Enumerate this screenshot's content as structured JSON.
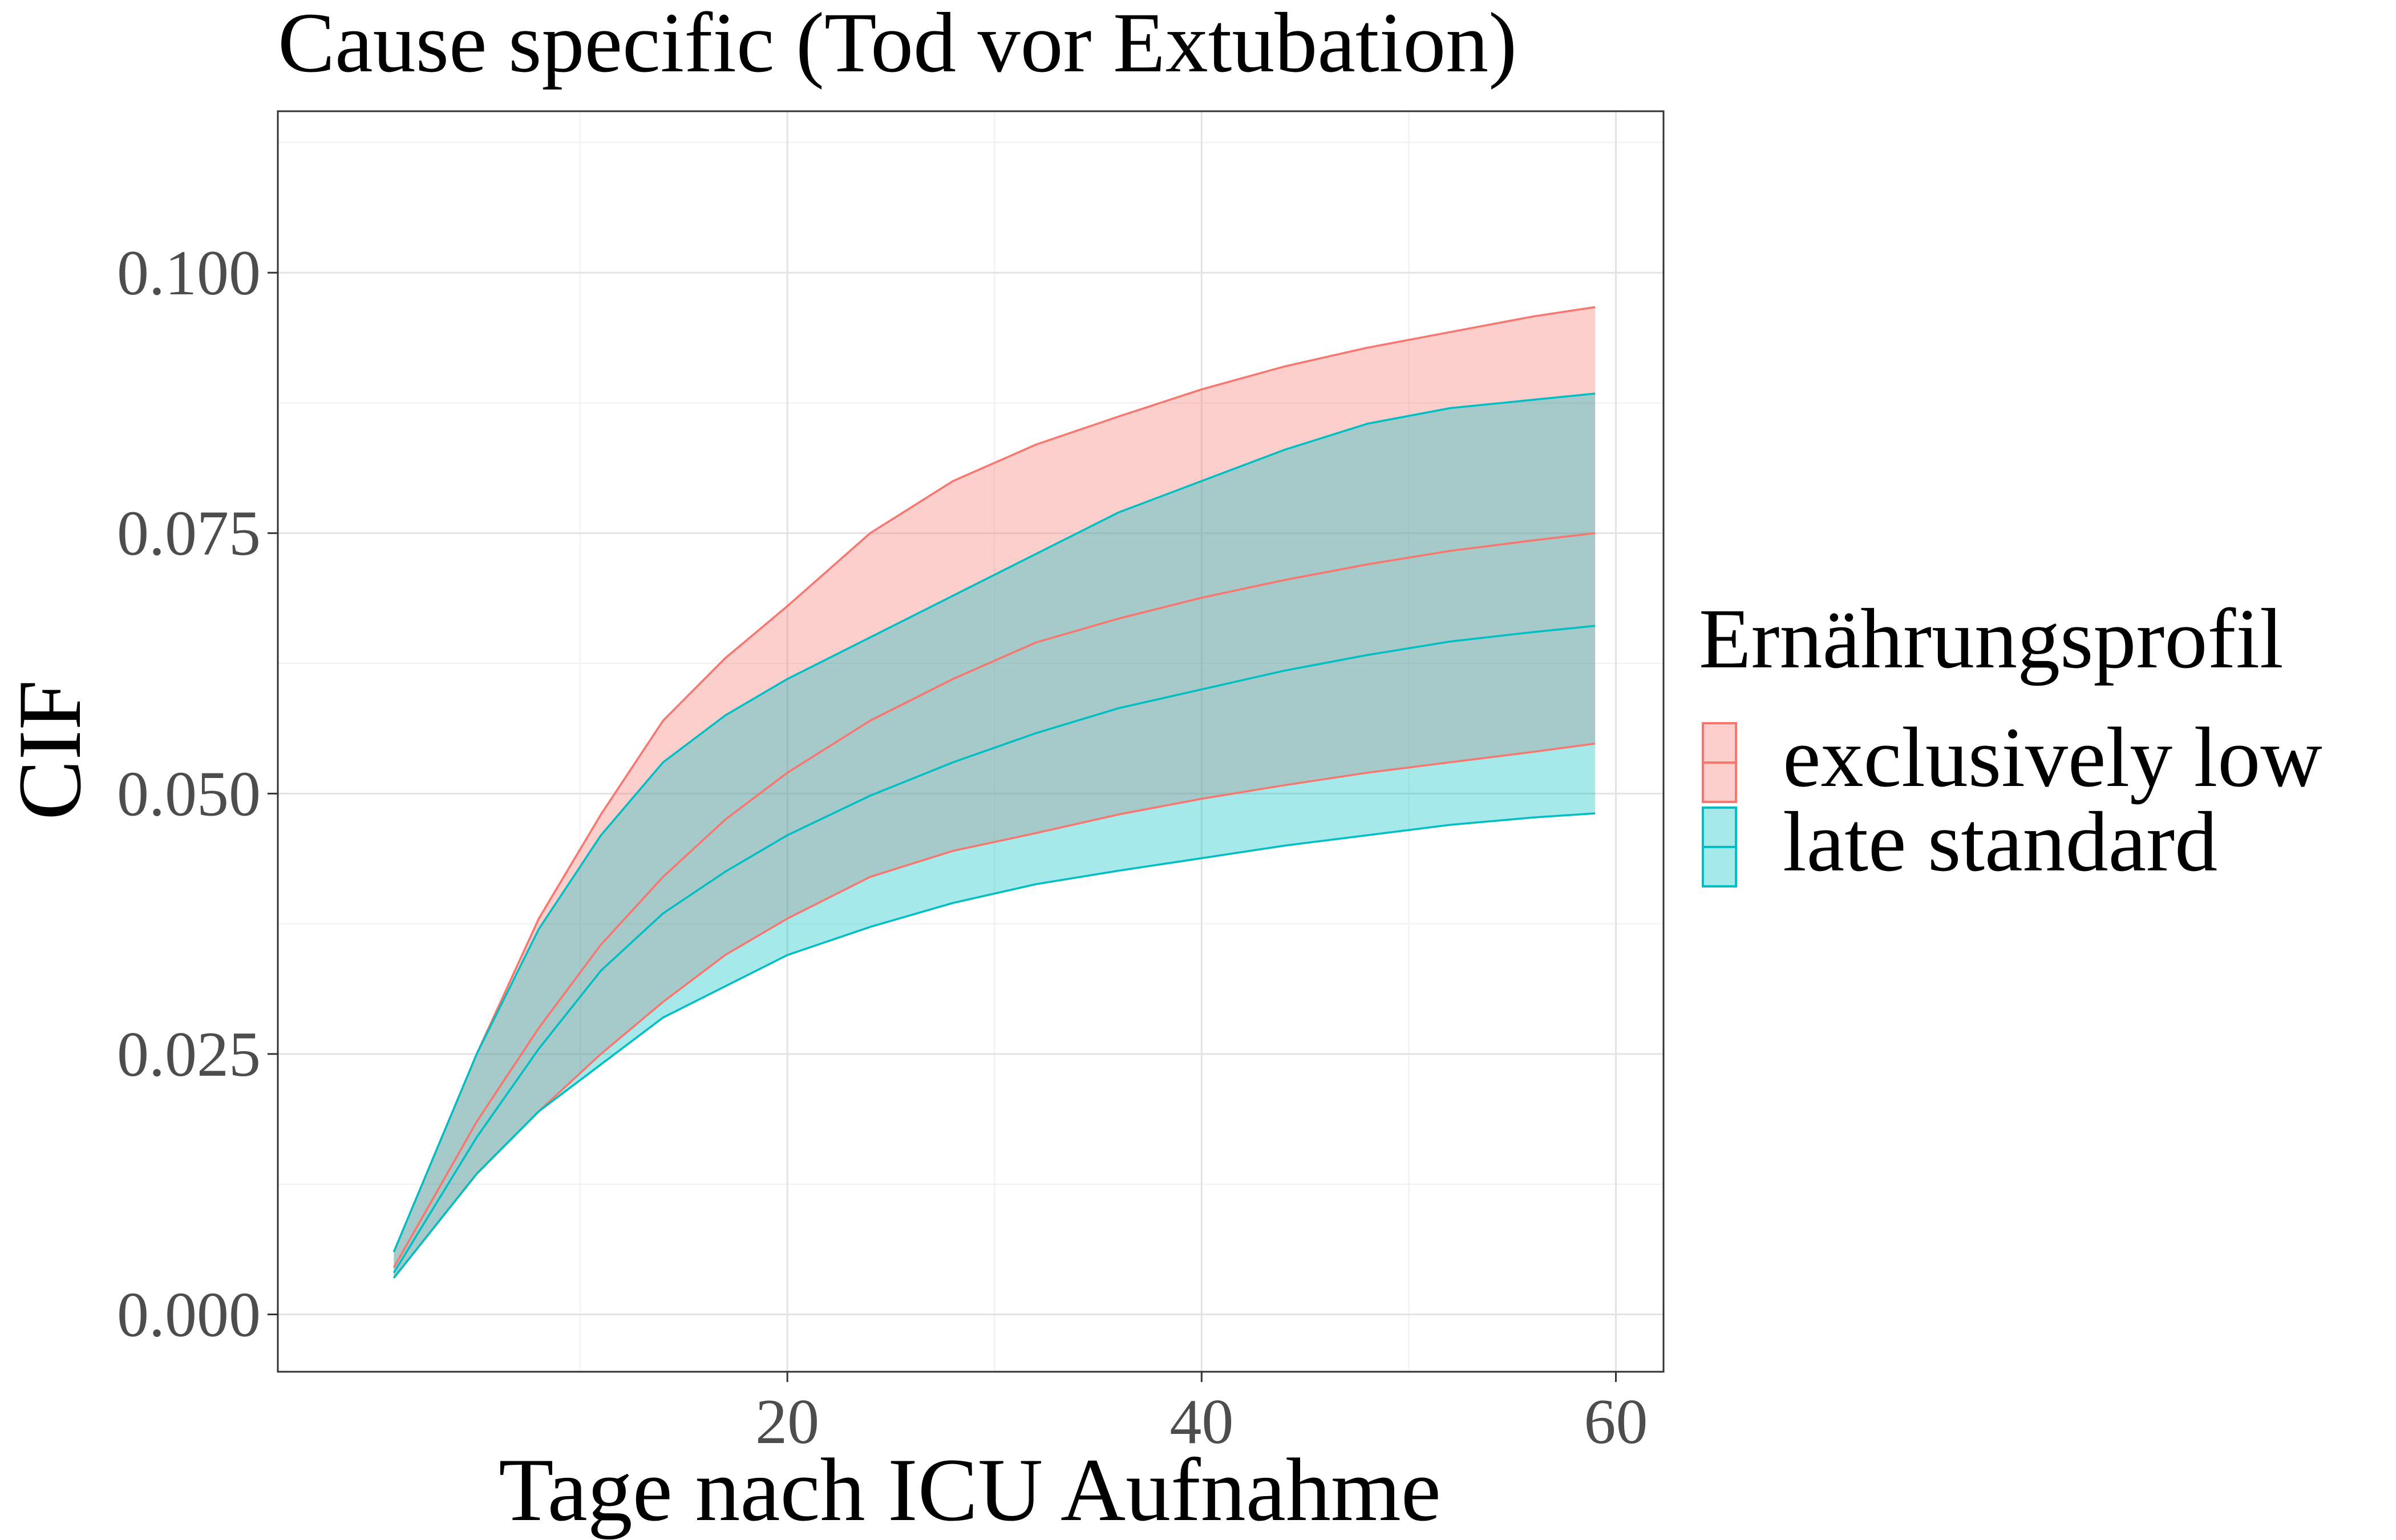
{
  "chart_data": {
    "type": "area",
    "title": "Cause specific (Tod vor Extubation)",
    "xlabel": "Tage nach ICU Aufnahme",
    "ylabel": "CIF",
    "xlim": [
      -4.6,
      62.3
    ],
    "ylim": [
      -0.0055,
      0.1155
    ],
    "x_ticks": [
      20,
      40,
      60
    ],
    "x_tick_labels": [
      "20",
      "40",
      "60"
    ],
    "y_ticks": [
      0.0,
      0.025,
      0.05,
      0.075,
      0.1
    ],
    "y_tick_labels": [
      "0.000",
      "0.025",
      "0.050",
      "0.075",
      "0.100"
    ],
    "grid": true,
    "legend": {
      "title": "Ernährungsprofil",
      "position": "right"
    },
    "x": [
      1,
      5,
      8,
      11,
      14,
      17,
      20,
      24,
      28,
      32,
      36,
      40,
      44,
      48,
      52,
      56,
      59
    ],
    "series": [
      {
        "name": "exclusively low",
        "color": "#F8766D",
        "fill": "#F8766D",
        "lower": [
          0.0035,
          0.0135,
          0.0195,
          0.025,
          0.03,
          0.0345,
          0.038,
          0.042,
          0.0445,
          0.0462,
          0.048,
          0.0495,
          0.0508,
          0.052,
          0.053,
          0.054,
          0.0548
        ],
        "estimate": [
          0.0045,
          0.0185,
          0.0275,
          0.0355,
          0.042,
          0.0475,
          0.052,
          0.057,
          0.061,
          0.0645,
          0.0668,
          0.0688,
          0.0705,
          0.072,
          0.0733,
          0.0743,
          0.075
        ],
        "upper": [
          0.006,
          0.025,
          0.038,
          0.048,
          0.057,
          0.063,
          0.068,
          0.075,
          0.08,
          0.0835,
          0.0862,
          0.0888,
          0.091,
          0.0928,
          0.0943,
          0.0958,
          0.0967
        ]
      },
      {
        "name": "late standard",
        "color": "#00BFC4",
        "fill": "#00BFC4",
        "lower": [
          0.0035,
          0.0135,
          0.0195,
          0.024,
          0.0285,
          0.0315,
          0.0345,
          0.0372,
          0.0395,
          0.0413,
          0.0426,
          0.0438,
          0.045,
          0.046,
          0.047,
          0.0477,
          0.0481
        ],
        "estimate": [
          0.004,
          0.017,
          0.0255,
          0.033,
          0.0385,
          0.0425,
          0.046,
          0.0498,
          0.053,
          0.0558,
          0.0582,
          0.06,
          0.0618,
          0.0633,
          0.0646,
          0.0655,
          0.0661
        ],
        "upper": [
          0.006,
          0.025,
          0.037,
          0.046,
          0.053,
          0.0575,
          0.061,
          0.065,
          0.069,
          0.073,
          0.077,
          0.08,
          0.083,
          0.0855,
          0.087,
          0.0878,
          0.0884
        ]
      }
    ]
  }
}
